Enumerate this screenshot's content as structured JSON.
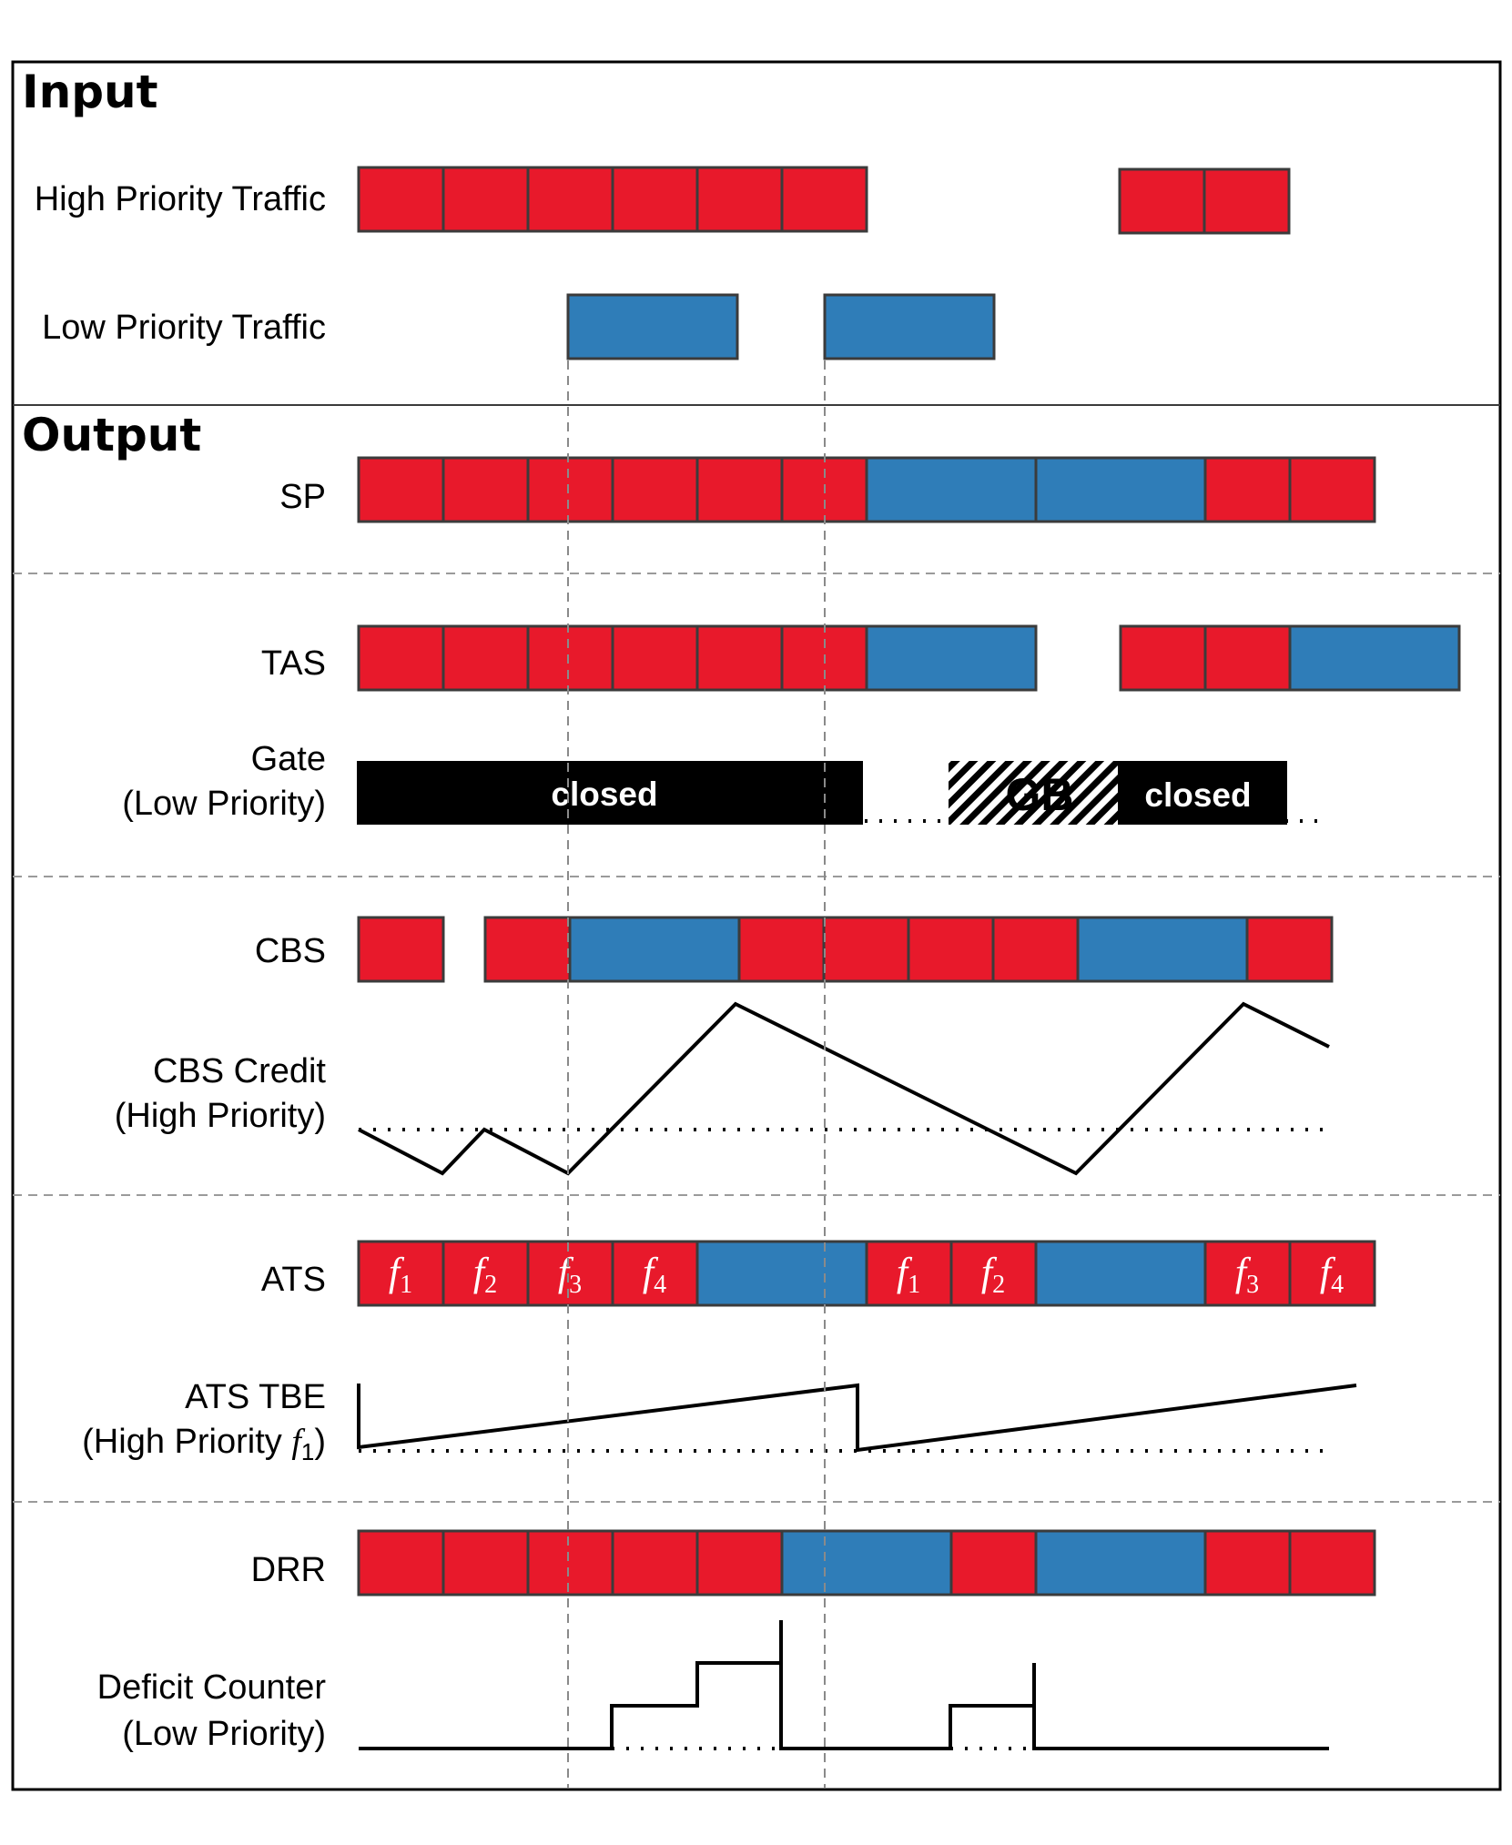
{
  "sections": {
    "input_header": "Input",
    "output_header": "Output"
  },
  "rows": {
    "high_priority": "High Priority Traffic",
    "low_priority": "Low Priority Traffic",
    "sp": "SP",
    "tas": "TAS",
    "gate_line1": "Gate",
    "gate_line2": "(Low Priority)",
    "cbs": "CBS",
    "cbs_credit_line1": "CBS Credit",
    "cbs_credit_line2": "(High Priority)",
    "ats": "ATS",
    "ats_tbe_line1": "ATS TBE",
    "ats_tbe_line2_prefix": "(High Priority ",
    "ats_tbe_line2_flow": "f",
    "ats_tbe_line2_sub": "1",
    "ats_tbe_line2_suffix": ")",
    "drr": "DRR",
    "deficit_line1": "Deficit Counter",
    "deficit_line2": "(Low Priority)"
  },
  "gate": {
    "closed_label_1": "closed",
    "guard_band_label": "GB",
    "closed_label_2": "closed"
  },
  "ats_flows": [
    {
      "f": "f",
      "n": "1"
    },
    {
      "f": "f",
      "n": "2"
    },
    {
      "f": "f",
      "n": "3"
    },
    {
      "f": "f",
      "n": "4"
    },
    {
      "f": "f",
      "n": "1"
    },
    {
      "f": "f",
      "n": "2"
    },
    {
      "f": "f",
      "n": "3"
    },
    {
      "f": "f",
      "n": "4"
    }
  ],
  "colors": {
    "high_priority": "#e8192b",
    "low_priority": "#2f7db8",
    "gate_closed": "#000000"
  }
}
